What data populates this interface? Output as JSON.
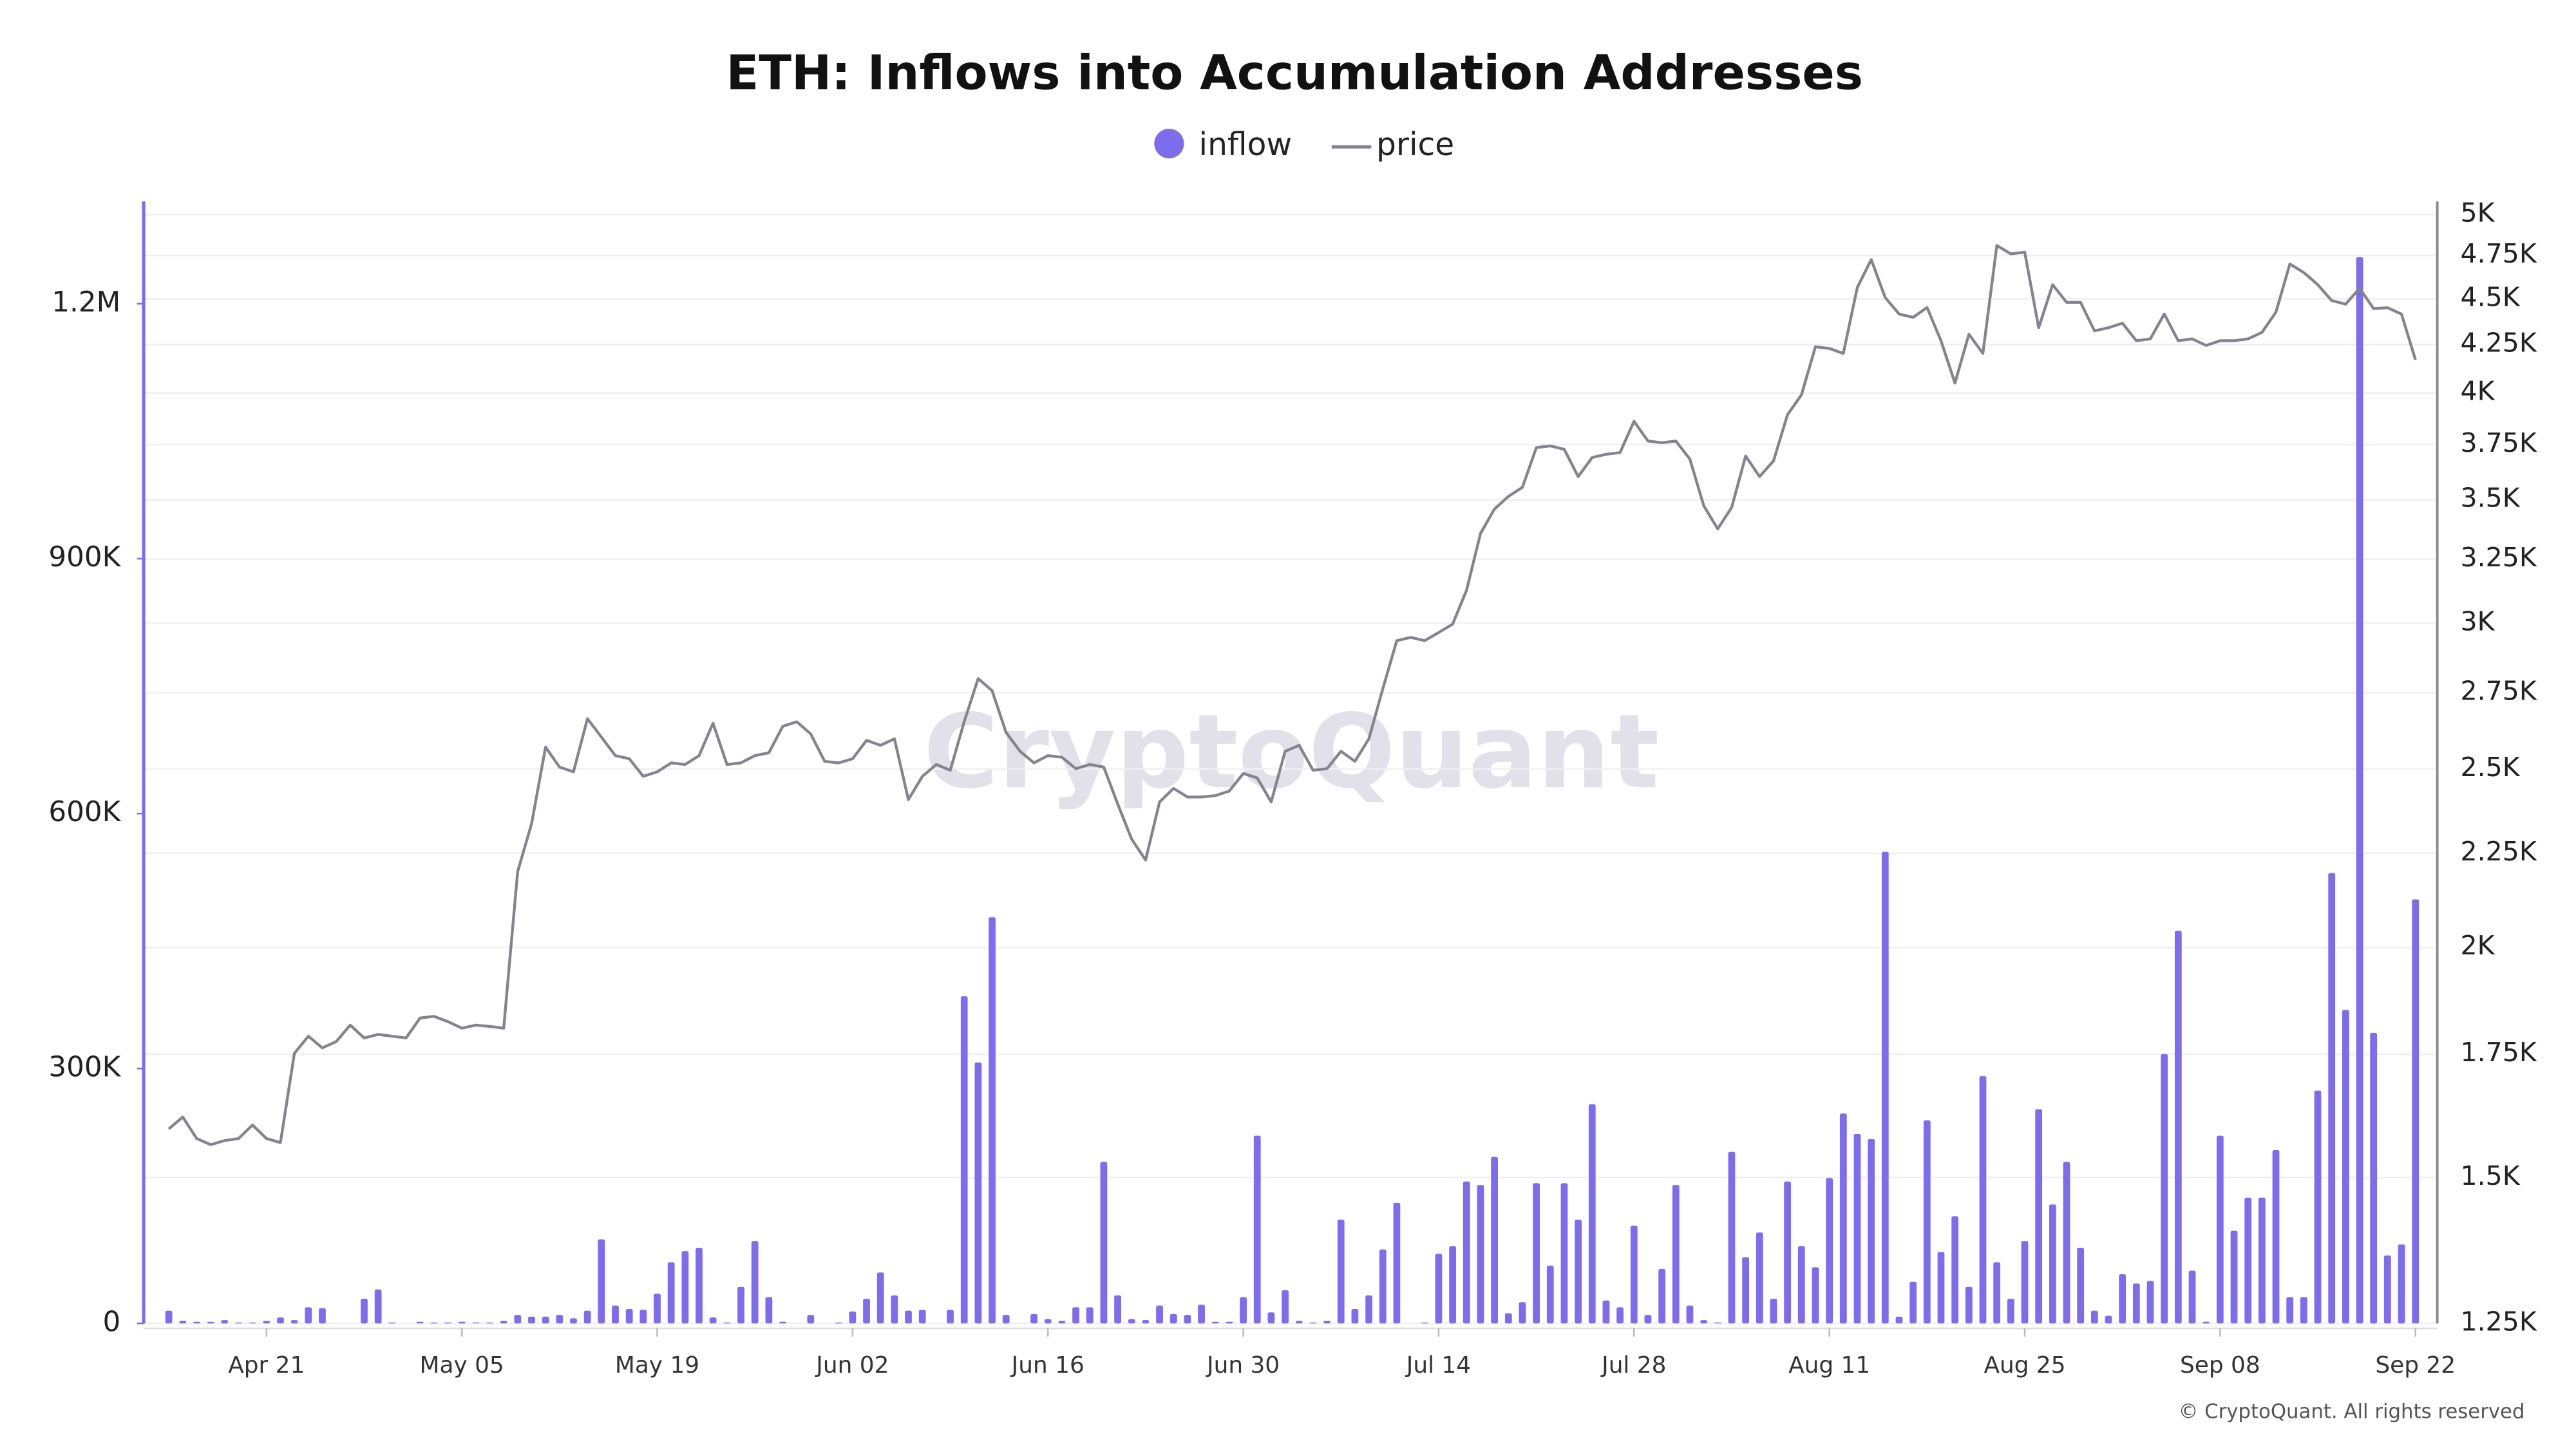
{
  "chart_data": {
    "type": "bar_line",
    "title": "ETH: Inflows into Accumulation Addresses",
    "watermark": "CryptoQuant",
    "footer": "© CryptoQuant. All rights reserved",
    "legend": "top",
    "grid": true,
    "y2scale": "log",
    "categories": [
      null,
      null,
      null,
      null,
      null,
      null,
      null,
      "Apr 21",
      null,
      null,
      null,
      null,
      null,
      null,
      null,
      null,
      null,
      null,
      null,
      null,
      null,
      "May 05",
      null,
      null,
      null,
      null,
      null,
      null,
      null,
      null,
      null,
      null,
      null,
      null,
      null,
      "May 19",
      null,
      null,
      null,
      null,
      null,
      null,
      null,
      null,
      null,
      null,
      null,
      null,
      null,
      "Jun 02",
      null,
      null,
      null,
      null,
      null,
      null,
      null,
      null,
      null,
      null,
      null,
      null,
      null,
      "Jun 16",
      null,
      null,
      null,
      null,
      null,
      null,
      null,
      null,
      null,
      null,
      null,
      null,
      null,
      "Jun 30",
      null,
      null,
      null,
      null,
      null,
      null,
      null,
      null,
      null,
      null,
      null,
      null,
      null,
      "Jul 14",
      null,
      null,
      null,
      null,
      null,
      null,
      null,
      null,
      null,
      null,
      null,
      null,
      null,
      "Jul 28",
      null,
      null,
      null,
      null,
      null,
      null,
      null,
      null,
      null,
      null,
      null,
      null,
      null,
      "Aug 11",
      null,
      null,
      null,
      null,
      null,
      null,
      null,
      null,
      null,
      null,
      null,
      null,
      null,
      "Aug 25",
      null,
      null,
      null,
      null,
      null,
      null,
      null,
      null,
      null,
      null,
      null,
      null,
      null,
      "Sep 08",
      null,
      null,
      null,
      null,
      null,
      null,
      null,
      null,
      null,
      null,
      null,
      null,
      null,
      "Sep 22"
    ],
    "series": [
      {
        "name": "inflow",
        "type": "bar",
        "axis": "y",
        "color": "#7e6cef",
        "values": [
          15000,
          3000,
          2000,
          2000,
          4000,
          1000,
          1000,
          3000,
          7000,
          4000,
          19000,
          18000,
          0,
          0,
          29000,
          40000,
          1000,
          0,
          2000,
          1000,
          1000,
          2000,
          1000,
          1000,
          3000,
          10000,
          8000,
          8000,
          10000,
          6000,
          15000,
          99000,
          21000,
          17000,
          16000,
          35000,
          72000,
          85000,
          89000,
          7000,
          1000,
          43000,
          97000,
          31000,
          2000,
          0,
          10000,
          0,
          1000,
          14000,
          29000,
          60000,
          33000,
          15000,
          16000,
          0,
          16000,
          385000,
          307000,
          478000,
          10000,
          0,
          11000,
          5000,
          3000,
          19000,
          19000,
          190000,
          33000,
          5000,
          4000,
          21000,
          11000,
          10000,
          22000,
          2000,
          2000,
          31000,
          221000,
          13000,
          39000,
          3000,
          1000,
          3000,
          122000,
          17000,
          33000,
          87000,
          142000,
          0,
          1000,
          82000,
          91000,
          167000,
          163000,
          196000,
          12000,
          25000,
          165000,
          68000,
          165000,
          122000,
          258000,
          27000,
          19000,
          115000,
          10000,
          64000,
          163000,
          21000,
          4000,
          1000,
          202000,
          78000,
          107000,
          29000,
          167000,
          91000,
          66000,
          171000,
          247000,
          223000,
          217000,
          555000,
          8000,
          49000,
          239000,
          84000,
          126000,
          43000,
          291000,
          72000,
          29000,
          97000,
          252000,
          140000,
          190000,
          89000,
          15000,
          9000,
          58000,
          47000,
          50000,
          317000,
          462000,
          62000,
          2000,
          221000,
          109000,
          148000,
          148000,
          204000,
          31000,
          31000,
          274000,
          530000,
          369000,
          1255000,
          342000,
          80000,
          93000,
          499000
        ]
      },
      {
        "name": "price",
        "type": "line",
        "axis": "y2",
        "color": "#84848e",
        "values": [
          1594,
          1618,
          1575,
          1563,
          1571,
          1575,
          1602,
          1575,
          1567,
          1752,
          1790,
          1764,
          1778,
          1815,
          1786,
          1794,
          1790,
          1786,
          1831,
          1835,
          1823,
          1808,
          1815,
          1812,
          1808,
          2199,
          2335,
          2569,
          2506,
          2491,
          2662,
          2602,
          2542,
          2532,
          2477,
          2491,
          2519,
          2514,
          2542,
          2647,
          2514,
          2519,
          2542,
          2551,
          2637,
          2652,
          2612,
          2524,
          2519,
          2532,
          2591,
          2575,
          2596,
          2406,
          2477,
          2514,
          2496,
          2652,
          2799,
          2757,
          2617,
          2556,
          2519,
          2542,
          2537,
          2501,
          2514,
          2506,
          2393,
          2290,
          2231,
          2399,
          2440,
          2414,
          2414,
          2418,
          2432,
          2486,
          2472,
          2399,
          2556,
          2575,
          2496,
          2501,
          2556,
          2524,
          2596,
          2764,
          2935,
          2947,
          2935,
          2965,
          2996,
          3126,
          3356,
          3460,
          3515,
          3555,
          3736,
          3744,
          3728,
          3603,
          3690,
          3705,
          3713,
          3861,
          3767,
          3759,
          3767,
          3683,
          3474,
          3375,
          3467,
          3697,
          3603,
          3675,
          3893,
          3991,
          4238,
          4229,
          4203,
          4564,
          4726,
          4507,
          4415,
          4397,
          4451,
          4270,
          4050,
          4305,
          4203,
          4810,
          4760,
          4770,
          4340,
          4580,
          4480,
          4480,
          4323,
          4340,
          4365,
          4270,
          4280,
          4415,
          4270,
          4280,
          4245,
          4270,
          4270,
          4280,
          4315,
          4425,
          4700,
          4650,
          4580,
          4490,
          4470,
          4560,
          4445,
          4450,
          4415,
          4170
        ]
      }
    ],
    "ylim": [
      0,
      1305000
    ],
    "yticks": [
      0,
      {
        "value": 300000,
        "label": "300K"
      },
      {
        "value": 600000,
        "label": "600K"
      },
      {
        "value": 900000,
        "label": "900K"
      },
      {
        "value": 1200000,
        "label": "1.2M"
      }
    ],
    "y2lim": [
      1250,
      5000
    ],
    "y2ticks": [
      {
        "value": 1250,
        "label": "1.25K"
      },
      {
        "value": 1500,
        "label": "1.5K"
      },
      {
        "value": 1750,
        "label": "1.75K"
      },
      {
        "value": 2000,
        "label": "2K"
      },
      {
        "value": 2250,
        "label": "2.25K"
      },
      {
        "value": 2500,
        "label": "2.5K"
      },
      {
        "value": 2750,
        "label": "2.75K"
      },
      {
        "value": 3000,
        "label": "3K"
      },
      {
        "value": 3250,
        "label": "3.25K"
      },
      {
        "value": 3500,
        "label": "3.5K"
      },
      {
        "value": 3750,
        "label": "3.75K"
      },
      {
        "value": 4000,
        "label": "4K"
      },
      {
        "value": 4250,
        "label": "4.25K"
      },
      {
        "value": 4500,
        "label": "4.5K"
      },
      {
        "value": 4750,
        "label": "4.75K"
      },
      {
        "value": 5000,
        "label": "5K"
      }
    ]
  }
}
